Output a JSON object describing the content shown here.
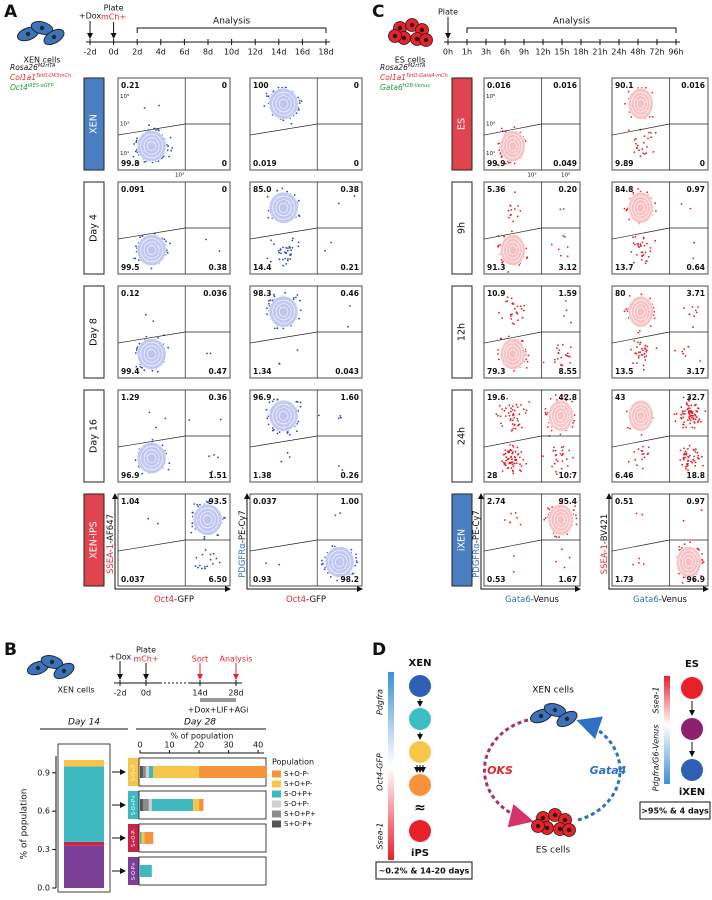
{
  "panel_labels": [
    "A",
    "B",
    "C",
    "D"
  ],
  "panel_a": {
    "cell_label": "XEN cells",
    "dox": "+Dox",
    "plate": "Plate",
    "mch": "mCh+",
    "analysis": "Analysis",
    "timeline": [
      "-2d",
      "0d",
      "2d",
      "4d",
      "6d",
      "8d",
      "10d",
      "12d",
      "14d",
      "16d",
      "18d"
    ],
    "genotype": [
      {
        "base": "Rosa26",
        "sup": "M2rtTA",
        "color": "#111111"
      },
      {
        "base": "Col1a1",
        "sup": "TetO-OKSmCh",
        "color": "#e0262d"
      },
      {
        "base": "Oct4",
        "sup": "IRES-eGFP",
        "color": "#1f9a3a"
      }
    ],
    "yticks": [
      "10⁵",
      "10³",
      "10¹"
    ],
    "xticks": [
      "10³"
    ],
    "rows": [
      {
        "label": "XEN",
        "color": "#4a7fc1",
        "plots": [
          [
            "0.21",
            "0",
            "99.8",
            "0"
          ],
          [
            "100",
            "0",
            "0.019",
            "0"
          ]
        ]
      },
      {
        "label": "Day 4",
        "plots": [
          [
            "0.091",
            "0",
            "99.5",
            "0.38"
          ],
          [
            "85.0",
            "0.38",
            "14.4",
            "0.21"
          ]
        ]
      },
      {
        "label": "Day 8",
        "plots": [
          [
            "0.12",
            "0.036",
            "99.4",
            "0.47"
          ],
          [
            "98.3",
            "0.46",
            "1.34",
            "0.043"
          ]
        ]
      },
      {
        "label": "Day 16",
        "plots": [
          [
            "1.29",
            "0.36",
            "96.9",
            "1.51"
          ],
          [
            "96.9",
            "1.60",
            "1.38",
            "0.26"
          ]
        ]
      },
      {
        "label": "XEN-iPS",
        "color": "#e0444f",
        "plots": [
          [
            "1.04",
            "93.5",
            "0.037",
            "6.50"
          ],
          [
            "0.037",
            "1.00",
            "0.93",
            "98.2"
          ]
        ]
      }
    ],
    "axes": [
      {
        "y": {
          "marker": "SSEA-1",
          "dye": "-AF647",
          "color": "#e0262d"
        },
        "x": {
          "marker": "Oct4",
          "dye": "-GFP",
          "color": "#e0262d"
        }
      },
      {
        "y": {
          "marker": "PDGFRα",
          "dye": "-PE-Cy7",
          "color": "#2f6fc4"
        },
        "x": {
          "marker": "Oct4",
          "dye": "-GFP",
          "color": "#e0262d"
        }
      }
    ]
  },
  "panel_c": {
    "cell_label": "ES cells",
    "plate": "Plate",
    "analysis": "Analysis",
    "timeline": [
      "0h",
      "1h",
      "3h",
      "6h",
      "9h",
      "12h",
      "15h",
      "18h",
      "21h",
      "24h",
      "48h",
      "72h",
      "96h"
    ],
    "genotype": [
      {
        "base": "Rosa26",
        "sup": "M2rtTA",
        "color": "#111111"
      },
      {
        "base": "Col1a1",
        "sup": "TetO-Gata4-mCh",
        "color": "#e0262d"
      },
      {
        "base": "Gata6",
        "sup": "H2B-Venus",
        "color": "#1f9a3a"
      }
    ],
    "yticks": [
      "10⁵",
      "10³",
      "10¹"
    ],
    "xticks": [
      "10³",
      "10⁵"
    ],
    "rows": [
      {
        "label": "ES",
        "color": "#e0444f",
        "plots": [
          [
            "0.016",
            "0.016",
            "99.9",
            "0.049"
          ],
          [
            "90.1",
            "0.016",
            "9.89",
            "0"
          ]
        ]
      },
      {
        "label": "9h",
        "plots": [
          [
            "5.36",
            "0.20",
            "91.3",
            "3.12"
          ],
          [
            "84.8",
            "0.97",
            "13.7",
            "0.64"
          ]
        ]
      },
      {
        "label": "12h",
        "plots": [
          [
            "10.9",
            "1.59",
            "79.3",
            "8.55"
          ],
          [
            "80",
            "3.71",
            "13.5",
            "3.17"
          ]
        ]
      },
      {
        "label": "24h",
        "plots": [
          [
            "19.6",
            "42.8",
            "28",
            "10.7"
          ],
          [
            "43",
            "32.7",
            "6.46",
            "18.8"
          ]
        ]
      },
      {
        "label": "iXEN",
        "color": "#4a7fc1",
        "plots": [
          [
            "2.74",
            "95.4",
            "0.53",
            "1.67"
          ],
          [
            "0.51",
            "0.97",
            "1.73",
            "96.9"
          ]
        ]
      }
    ],
    "axes": [
      {
        "y": {
          "marker": "PDGFRα",
          "dye": "-PE-Cy7",
          "color": "#2f6fc4"
        },
        "x": {
          "marker": "Gata6",
          "dye": "-Venus",
          "color": "#2f6fc4"
        }
      },
      {
        "y": {
          "marker": "SSEA-1",
          "dye": "-BV421",
          "color": "#e0262d"
        },
        "x": {
          "marker": "Gata6",
          "dye": "-Venus",
          "color": "#2f6fc4"
        }
      }
    ]
  },
  "panel_b": {
    "cell_label": "XEN cells",
    "dox": "+Dox",
    "plate": "Plate",
    "mch": "mCh+",
    "sort": "Sort",
    "analysis": "Analysis",
    "timeline": [
      "-2d",
      "0d",
      "14d",
      "28d"
    ],
    "treatment": "+Dox+LIF+AGi",
    "day14": "Day 14",
    "day28": "Day 28"
  },
  "chart_data": [
    {
      "type": "bar",
      "orientation": "vertical",
      "stacked": true,
      "categories": [
        null
      ],
      "series": [
        {
          "color": "#7b3f98",
          "values": [
            0.33
          ]
        },
        {
          "color": "#c8234b",
          "values": [
            0.03
          ]
        },
        {
          "color": "#3fb8c0",
          "values": [
            0.59
          ]
        },
        {
          "color": "#f7c548",
          "values": [
            0.05
          ]
        }
      ],
      "ylabel": "% of population",
      "ylim": [
        0,
        1
      ],
      "yticks": [
        {
          "value": 0,
          "label": "0.0"
        },
        0.3,
        0.6,
        0.9
      ]
    },
    {
      "type": "bar",
      "orientation": "horizontal",
      "stacked": true,
      "categories": [
        "S-O+P-",
        "S-O+P+",
        "S+O-P-",
        "S-O-P+"
      ],
      "category_colors": [
        "#f7c548",
        "#3fb8c0",
        "#c8234b",
        "#7b3f98"
      ],
      "xlabel": "% of population",
      "xlim": [
        0,
        42
      ],
      "xticks": [
        0,
        10,
        20,
        30,
        40
      ],
      "legend_title": "Population",
      "legend": "right",
      "series": [
        {
          "name": "S+O-P+",
          "color": "#555555",
          "values": [
            1,
            1,
            0,
            0
          ]
        },
        {
          "name": "S+O+P+",
          "color": "#8c8c8c",
          "values": [
            1,
            2,
            0,
            0
          ]
        },
        {
          "name": "S-O+P-",
          "color": "#cfcfcf",
          "values": [
            1,
            1,
            0,
            0
          ]
        },
        {
          "name": "S-O+P+",
          "color": "#3fb8c0",
          "values": [
            1.5,
            14,
            0.5,
            4
          ]
        },
        {
          "name": "S+O+P-",
          "color": "#f7c548",
          "values": [
            15.5,
            2,
            1,
            0
          ]
        },
        {
          "name": "S+O-P-",
          "color": "#f6923a",
          "values": [
            23,
            1.5,
            3,
            0
          ]
        }
      ]
    }
  ],
  "panel_d": {
    "xen": "XEN",
    "pdgfra": "Pdgfra",
    "oct4": "Oct4-GFP",
    "ssea1": "Ssea-1",
    "approx": "≈",
    "ips": "iPS",
    "ips_note": "~0.2% & 14-20 days",
    "xen_cells": "XEN cells",
    "oks": "OKS",
    "gata4": "Gata4",
    "es_cells": "ES cells",
    "es": "ES",
    "ssea1_right": "Ssea-1",
    "pdgfra_venus": "Pdgfra/G6-Venus",
    "ixen": "iXEN",
    "ixen_note": ">95% & 4 days"
  }
}
